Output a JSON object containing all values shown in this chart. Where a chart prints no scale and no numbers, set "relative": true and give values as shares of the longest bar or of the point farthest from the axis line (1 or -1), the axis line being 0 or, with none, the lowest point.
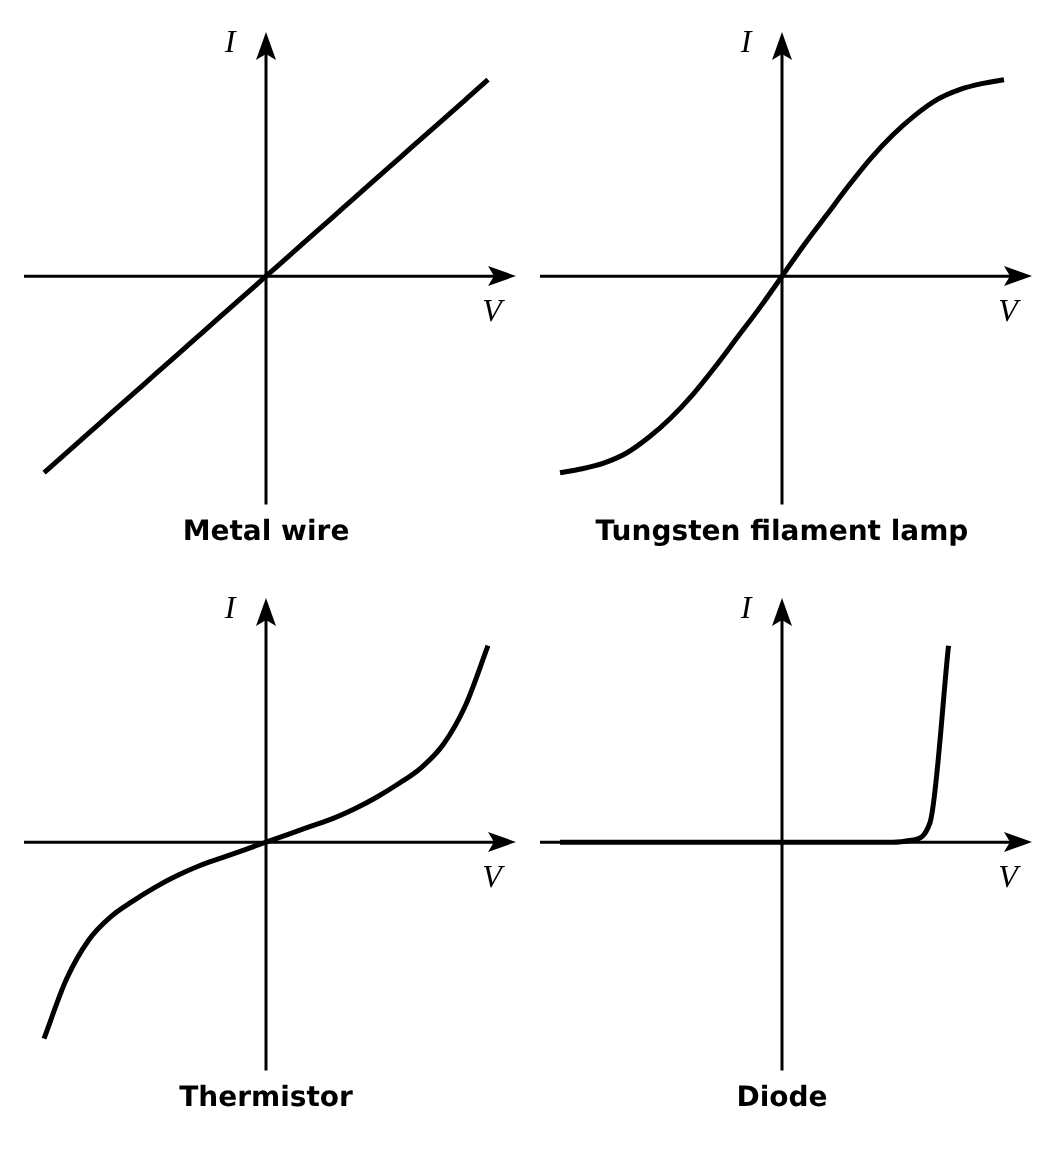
{
  "chart_data": [
    {
      "type": "line",
      "title": "Metal wire",
      "xlabel": "V",
      "ylabel": "I",
      "relative": true,
      "marker": "none",
      "categories": [
        null,
        null,
        null,
        null,
        null,
        null,
        null,
        null,
        null,
        null,
        null,
        null,
        null,
        null,
        null,
        null,
        null,
        null,
        null,
        null,
        null
      ],
      "series": [
        {
          "color": "#000000",
          "values": [
            -1,
            -0.9,
            -0.8,
            -0.7,
            -0.6,
            -0.5,
            -0.4,
            -0.3,
            -0.2,
            -0.1,
            0,
            0.1,
            0.2,
            0.3,
            0.4,
            0.5,
            0.6,
            0.7,
            0.8,
            0.9,
            1
          ]
        }
      ]
    },
    {
      "type": "line",
      "title": "Tungsten filament lamp",
      "xlabel": "V",
      "ylabel": "I",
      "relative": true,
      "marker": "none",
      "categories": [
        null,
        null,
        null,
        null,
        null,
        null,
        null,
        null,
        null,
        null,
        null,
        null,
        null,
        null,
        null,
        null,
        null,
        null,
        null,
        null,
        null
      ],
      "series": [
        {
          "color": "#000000",
          "values": [
            -1,
            -0.98,
            -0.95,
            -0.9,
            -0.82,
            -0.72,
            -0.6,
            -0.46,
            -0.31,
            -0.16,
            0,
            0.16,
            0.31,
            0.46,
            0.6,
            0.72,
            0.82,
            0.9,
            0.95,
            0.98,
            1
          ]
        }
      ]
    },
    {
      "type": "line",
      "title": "Thermistor",
      "xlabel": "V",
      "ylabel": "I",
      "relative": true,
      "marker": "none",
      "categories": [
        null,
        null,
        null,
        null,
        null,
        null,
        null,
        null,
        null,
        null,
        null,
        null,
        null,
        null,
        null,
        null,
        null,
        null,
        null,
        null,
        null
      ],
      "series": [
        {
          "color": "#000000",
          "values": [
            -1,
            -0.7,
            -0.5,
            -0.38,
            -0.3,
            -0.23,
            -0.17,
            -0.12,
            -0.08,
            -0.04,
            0,
            0.04,
            0.08,
            0.12,
            0.17,
            0.23,
            0.3,
            0.38,
            0.5,
            0.7,
            1
          ]
        }
      ]
    },
    {
      "type": "line",
      "title": "Diode",
      "xlabel": "V",
      "ylabel": "I",
      "relative": true,
      "marker": "none",
      "categories": [
        null,
        null,
        null,
        null,
        null,
        null,
        null,
        null,
        null,
        null,
        null,
        null,
        null,
        null,
        null,
        null,
        null,
        null,
        null,
        null,
        null,
        null,
        null,
        null,
        null
      ],
      "series": [
        {
          "color": "#000000",
          "values": [
            0,
            0,
            0,
            0,
            0,
            0,
            0,
            0,
            0,
            0,
            0,
            0,
            0,
            0,
            0,
            0,
            0,
            0,
            0,
            0.01,
            0.1,
            1,
            null,
            null,
            null
          ]
        }
      ]
    }
  ]
}
